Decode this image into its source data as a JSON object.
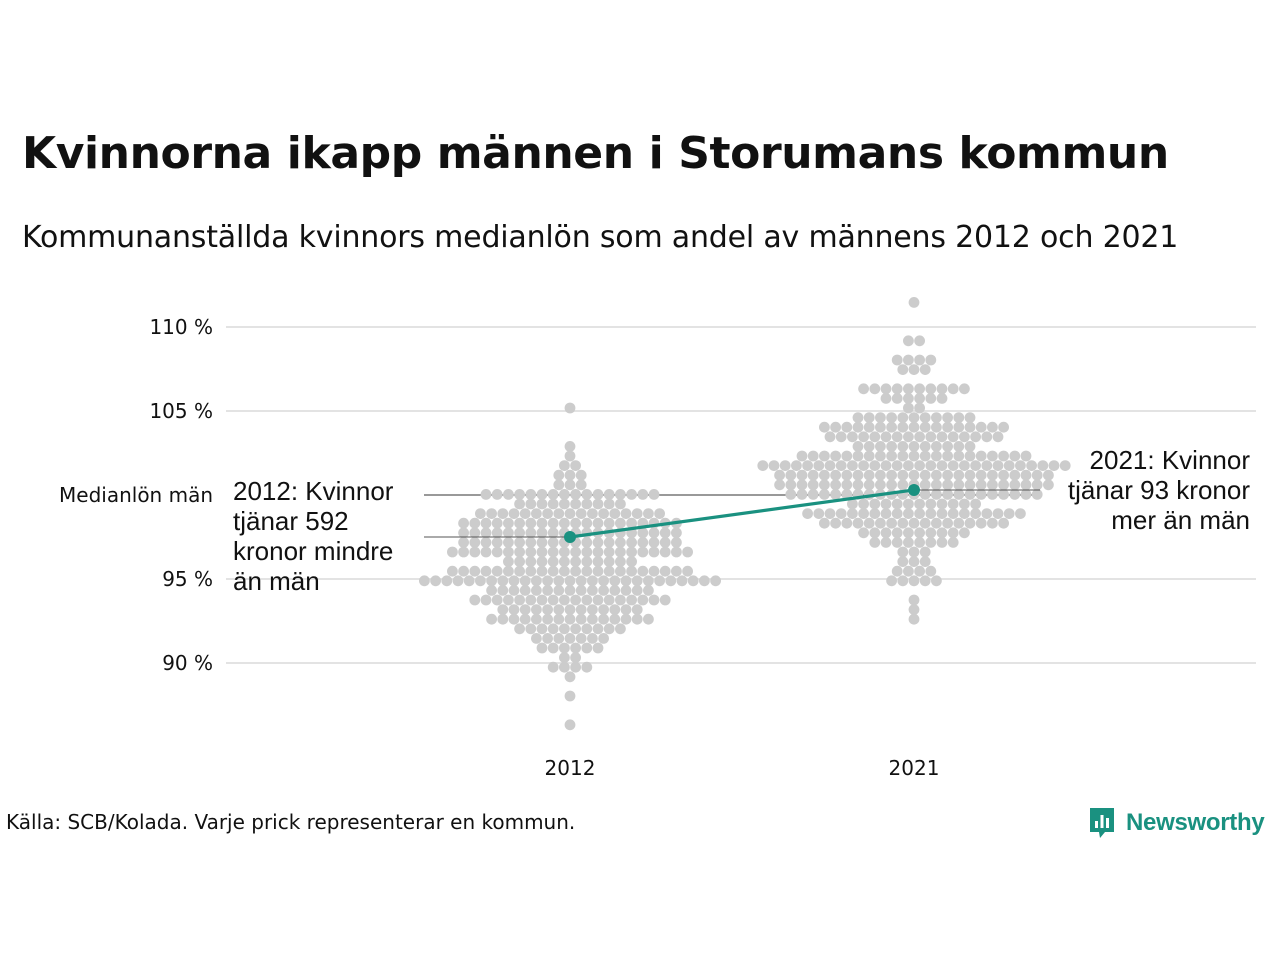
{
  "chart_data": {
    "type": "scatter",
    "subtype": "beeswarm",
    "title": "Kvinnorna ikapp männen i Storumans kommun",
    "subtitle": "Kommunanställda kvinnors medianlön som andel av männens 2012 och 2021",
    "categories": [
      "2012",
      "2021"
    ],
    "y_ticks": [
      {
        "value": 90,
        "label": "90 %"
      },
      {
        "value": 95,
        "label": "95 %"
      },
      {
        "value": 105,
        "label": "105 %"
      },
      {
        "value": 110,
        "label": "110 %"
      }
    ],
    "ylim": [
      86,
      111.5
    ],
    "grid": true,
    "reference_line": {
      "value": 100,
      "label": "Medianlön män"
    },
    "distribution": [
      {
        "year": "2012",
        "min": 86.5,
        "max": 105.2,
        "center": 95.8,
        "spread": 2.9,
        "count": 290
      },
      {
        "year": "2021",
        "min": 92.6,
        "max": 111.3,
        "center": 101.3,
        "spread": 2.9,
        "count": 290
      }
    ],
    "highlight": {
      "name": "Storumans kommun",
      "values": [
        {
          "year": "2012",
          "value": 97.5
        },
        {
          "year": "2021",
          "value": 100.3
        }
      ],
      "color": "#1a9180"
    },
    "annotations": [
      {
        "year": "2012",
        "lines": [
          "2012: Kvinnor",
          "tjänar 592",
          "kronor mindre",
          "än män"
        ]
      },
      {
        "year": "2021",
        "lines": [
          "2021: Kvinnor",
          "tjänar 93 kronor",
          "mer än män"
        ]
      }
    ],
    "dot_color": "#cccccc",
    "grid_color": "#e3e3e3"
  },
  "source": "Källa: SCB/Kolada. Varje prick representerar en kommun.",
  "brand": {
    "name": "Newsworthy",
    "icon": "bar-chart-speech-bubble-icon",
    "color": "#1a9180"
  }
}
